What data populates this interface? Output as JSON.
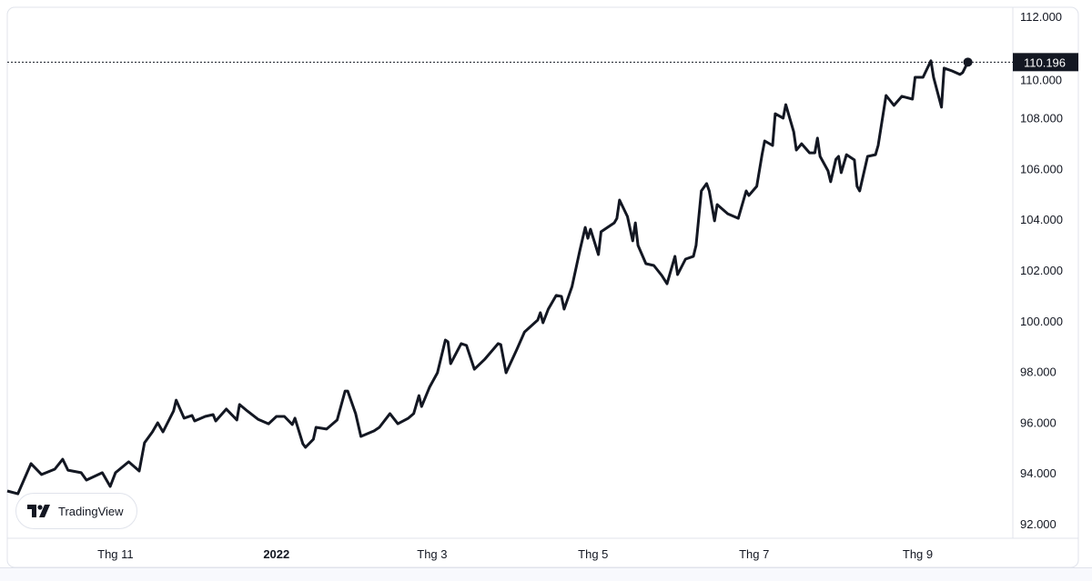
{
  "brand": "TradingView",
  "chart_data": {
    "type": "line",
    "title": "",
    "xlabel": "",
    "ylabel": "",
    "ylim": [
      92,
      112
    ],
    "yticks": [
      "112.000",
      "110.000",
      "108.000",
      "106.000",
      "104.000",
      "102.000",
      "100.000",
      "98.000",
      "96.000",
      "94.000",
      "92.000"
    ],
    "xticks": [
      {
        "label": "Thg 11",
        "date": "2021-11-01",
        "bold": false
      },
      {
        "label": "2022",
        "date": "2022-01-01",
        "bold": true
      },
      {
        "label": "Thg 3",
        "date": "2022-03-01",
        "bold": false
      },
      {
        "label": "Thg 5",
        "date": "2022-05-01",
        "bold": false
      },
      {
        "label": "Thg 7",
        "date": "2022-07-01",
        "bold": false
      },
      {
        "label": "Thg 9",
        "date": "2022-09-01",
        "bold": false
      }
    ],
    "last_value_label": "110.196",
    "last_value": 110.196,
    "line_color": "#131722",
    "grid": false,
    "series": [
      {
        "points": [
          [
            "2021-09-21",
            93.29
          ],
          [
            "2021-09-25",
            93.18
          ],
          [
            "2021-09-30",
            94.37
          ],
          [
            "2021-10-04",
            93.94
          ],
          [
            "2021-10-09",
            94.15
          ],
          [
            "2021-10-12",
            94.54
          ],
          [
            "2021-10-14",
            94.11
          ],
          [
            "2021-10-19",
            94.01
          ],
          [
            "2021-10-21",
            93.72
          ],
          [
            "2021-10-27",
            94.01
          ],
          [
            "2021-10-30",
            93.47
          ],
          [
            "2021-11-01",
            94.01
          ],
          [
            "2021-11-06",
            94.44
          ],
          [
            "2021-11-10",
            94.08
          ],
          [
            "2021-11-12",
            95.19
          ],
          [
            "2021-11-15",
            95.62
          ],
          [
            "2021-11-17",
            95.98
          ],
          [
            "2021-11-19",
            95.62
          ],
          [
            "2021-11-23",
            96.44
          ],
          [
            "2021-11-24",
            96.87
          ],
          [
            "2021-11-27",
            96.16
          ],
          [
            "2021-11-30",
            96.27
          ],
          [
            "2021-12-01",
            96.05
          ],
          [
            "2021-12-05",
            96.23
          ],
          [
            "2021-12-08",
            96.3
          ],
          [
            "2021-12-09",
            96.05
          ],
          [
            "2021-12-13",
            96.52
          ],
          [
            "2021-12-17",
            96.09
          ],
          [
            "2021-12-18",
            96.7
          ],
          [
            "2021-12-21",
            96.44
          ],
          [
            "2021-12-25",
            96.12
          ],
          [
            "2021-12-29",
            95.94
          ],
          [
            "2022-01-01",
            96.23
          ],
          [
            "2022-01-04",
            96.23
          ],
          [
            "2022-01-07",
            95.91
          ],
          [
            "2022-01-08",
            96.16
          ],
          [
            "2022-01-11",
            95.15
          ],
          [
            "2022-01-12",
            95.01
          ],
          [
            "2022-01-15",
            95.33
          ],
          [
            "2022-01-16",
            95.8
          ],
          [
            "2022-01-20",
            95.73
          ],
          [
            "2022-01-24",
            96.09
          ],
          [
            "2022-01-27",
            97.23
          ],
          [
            "2022-01-28",
            97.23
          ],
          [
            "2022-01-31",
            96.34
          ],
          [
            "2022-02-02",
            95.44
          ],
          [
            "2022-02-07",
            95.66
          ],
          [
            "2022-02-09",
            95.8
          ],
          [
            "2022-02-13",
            96.34
          ],
          [
            "2022-02-16",
            95.94
          ],
          [
            "2022-02-20",
            96.16
          ],
          [
            "2022-02-22",
            96.34
          ],
          [
            "2022-02-24",
            97.05
          ],
          [
            "2022-02-25",
            96.62
          ],
          [
            "2022-02-28",
            97.38
          ],
          [
            "2022-03-03",
            97.95
          ],
          [
            "2022-03-06",
            99.24
          ],
          [
            "2022-03-07",
            99.17
          ],
          [
            "2022-03-08",
            98.31
          ],
          [
            "2022-03-12",
            99.1
          ],
          [
            "2022-03-14",
            99.03
          ],
          [
            "2022-03-17",
            98.09
          ],
          [
            "2022-03-21",
            98.49
          ],
          [
            "2022-03-26",
            99.1
          ],
          [
            "2022-03-27",
            99.06
          ],
          [
            "2022-03-29",
            97.95
          ],
          [
            "2022-04-02",
            98.85
          ],
          [
            "2022-04-05",
            99.56
          ],
          [
            "2022-04-10",
            100.03
          ],
          [
            "2022-04-11",
            100.32
          ],
          [
            "2022-04-12",
            99.92
          ],
          [
            "2022-04-14",
            100.46
          ],
          [
            "2022-04-17",
            101.0
          ],
          [
            "2022-04-19",
            100.96
          ],
          [
            "2022-04-20",
            100.46
          ],
          [
            "2022-04-23",
            101.35
          ],
          [
            "2022-04-26",
            102.79
          ],
          [
            "2022-04-28",
            103.68
          ],
          [
            "2022-04-29",
            103.25
          ],
          [
            "2022-04-30",
            103.61
          ],
          [
            "2022-05-03",
            102.61
          ],
          [
            "2022-05-04",
            103.51
          ],
          [
            "2022-05-09",
            103.86
          ],
          [
            "2022-05-10",
            104.04
          ],
          [
            "2022-05-11",
            104.76
          ],
          [
            "2022-05-14",
            104.11
          ],
          [
            "2022-05-16",
            103.15
          ],
          [
            "2022-05-17",
            103.86
          ],
          [
            "2022-05-18",
            102.97
          ],
          [
            "2022-05-21",
            102.25
          ],
          [
            "2022-05-24",
            102.18
          ],
          [
            "2022-05-27",
            101.79
          ],
          [
            "2022-05-29",
            101.46
          ],
          [
            "2022-06-01",
            102.54
          ],
          [
            "2022-06-02",
            101.82
          ],
          [
            "2022-06-05",
            102.43
          ],
          [
            "2022-06-08",
            102.54
          ],
          [
            "2022-06-09",
            102.97
          ],
          [
            "2022-06-11",
            105.12
          ],
          [
            "2022-06-13",
            105.41
          ],
          [
            "2022-06-14",
            105.12
          ],
          [
            "2022-06-16",
            103.94
          ],
          [
            "2022-06-17",
            104.58
          ],
          [
            "2022-06-21",
            104.22
          ],
          [
            "2022-06-25",
            104.04
          ],
          [
            "2022-06-28",
            105.12
          ],
          [
            "2022-06-29",
            104.94
          ],
          [
            "2022-07-02",
            105.3
          ],
          [
            "2022-07-04",
            106.55
          ],
          [
            "2022-07-05",
            107.09
          ],
          [
            "2022-07-08",
            106.91
          ],
          [
            "2022-07-09",
            108.16
          ],
          [
            "2022-07-12",
            107.99
          ],
          [
            "2022-07-13",
            108.52
          ],
          [
            "2022-07-16",
            107.45
          ],
          [
            "2022-07-17",
            106.73
          ],
          [
            "2022-07-19",
            106.98
          ],
          [
            "2022-07-22",
            106.62
          ],
          [
            "2022-07-24",
            106.62
          ],
          [
            "2022-07-25",
            107.2
          ],
          [
            "2022-07-26",
            106.48
          ],
          [
            "2022-07-29",
            105.91
          ],
          [
            "2022-07-30",
            105.48
          ],
          [
            "2022-08-01",
            106.37
          ],
          [
            "2022-08-02",
            106.48
          ],
          [
            "2022-08-03",
            105.84
          ],
          [
            "2022-08-05",
            106.55
          ],
          [
            "2022-08-08",
            106.34
          ],
          [
            "2022-08-09",
            105.3
          ],
          [
            "2022-08-10",
            105.12
          ],
          [
            "2022-08-13",
            106.48
          ],
          [
            "2022-08-16",
            106.55
          ],
          [
            "2022-08-17",
            106.91
          ],
          [
            "2022-08-20",
            108.88
          ],
          [
            "2022-08-23",
            108.49
          ],
          [
            "2022-08-26",
            108.85
          ],
          [
            "2022-08-30",
            108.74
          ],
          [
            "2022-08-31",
            109.6
          ],
          [
            "2022-09-03",
            109.6
          ],
          [
            "2022-09-06",
            110.25
          ],
          [
            "2022-09-07",
            109.6
          ],
          [
            "2022-09-10",
            108.42
          ],
          [
            "2022-09-11",
            109.96
          ],
          [
            "2022-09-14",
            109.85
          ],
          [
            "2022-09-17",
            109.71
          ],
          [
            "2022-09-18",
            109.78
          ],
          [
            "2022-09-20",
            110.196
          ]
        ]
      }
    ]
  }
}
